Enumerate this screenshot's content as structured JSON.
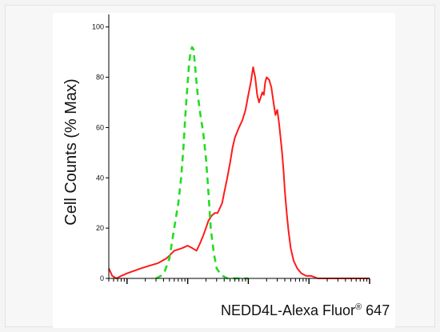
{
  "chart_data": {
    "type": "line",
    "title": "",
    "xlabel": {
      "prefix": "NEDD4L-Alexa Fluor",
      "mark": "®",
      "suffix": " 647"
    },
    "ylabel": "Cell Counts (% Max)",
    "x_scale": "log",
    "xlim": [
      0.5,
      10000
    ],
    "ylim": [
      0,
      105
    ],
    "yticks": [
      0,
      20,
      40,
      60,
      80,
      100
    ],
    "ytick_labels": [
      "0",
      "20",
      "40",
      "60",
      "80",
      "100"
    ],
    "legend": "none",
    "grid": false,
    "series": [
      {
        "color": "#ff1a1a",
        "style": "solid",
        "x": [
          0.5,
          0.57,
          0.67,
          0.8,
          1,
          1.3,
          1.7,
          2.3,
          3.2,
          4.5,
          6,
          8,
          10,
          12,
          14,
          16,
          18,
          20,
          22,
          25,
          28,
          31,
          34,
          37,
          40,
          45,
          50,
          55,
          60,
          70,
          80,
          90,
          100,
          110,
          120,
          130,
          140,
          150,
          160,
          170,
          180,
          190,
          200,
          220,
          240,
          260,
          280,
          300,
          320,
          340,
          360,
          380,
          400,
          430,
          460,
          500,
          560,
          640,
          750,
          900,
          1100,
          1400,
          1800,
          2500,
          3500,
          5000,
          7000,
          10000
        ],
        "y": [
          4,
          1,
          0,
          1,
          2,
          3,
          4,
          5,
          6,
          8,
          11,
          12,
          13,
          12,
          11,
          14,
          17,
          20,
          23,
          25,
          26,
          26,
          28,
          30,
          34,
          40,
          46,
          52,
          56,
          60,
          63,
          67,
          73,
          78,
          84,
          80,
          73,
          70,
          72,
          74,
          73,
          78,
          80,
          79,
          76,
          70,
          65,
          67,
          62,
          56,
          50,
          43,
          35,
          26,
          19,
          12,
          7,
          4,
          2,
          1,
          1,
          0,
          0,
          0,
          0,
          0,
          0,
          0
        ]
      },
      {
        "color": "#22dd22",
        "style": "dashed",
        "x": [
          3,
          3.6,
          4.2,
          5,
          6,
          7,
          7.8,
          8.5,
          9.2,
          10,
          10.6,
          11.2,
          11.8,
          12.5,
          13.5,
          14.5,
          16,
          18,
          20,
          22,
          24,
          27,
          30,
          34,
          38,
          45,
          55,
          70,
          100
        ],
        "y": [
          0,
          1,
          3,
          8,
          20,
          30,
          40,
          52,
          66,
          78,
          86,
          90,
          92,
          91,
          82,
          74,
          66,
          58,
          48,
          34,
          20,
          10,
          4,
          2,
          1,
          0,
          0,
          0,
          0
        ]
      }
    ]
  }
}
